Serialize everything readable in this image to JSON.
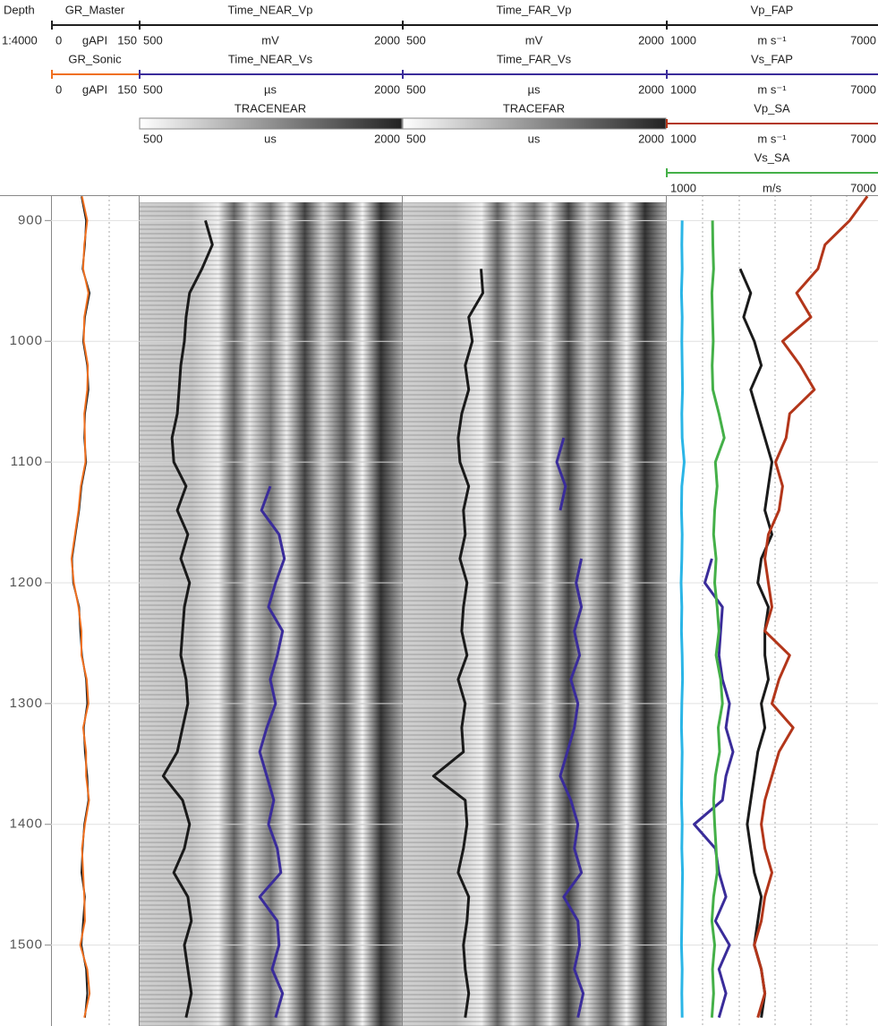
{
  "header": {
    "depth_label": "Depth",
    "scale": "1:4000"
  },
  "depth": {
    "ylim": [
      879,
      1567
    ],
    "yticks": [
      900,
      1000,
      1100,
      1200,
      1300,
      1400,
      1500
    ],
    "samples": [
      880,
      900,
      920,
      940,
      960,
      980,
      1000,
      1020,
      1040,
      1060,
      1080,
      1100,
      1120,
      1140,
      1160,
      1180,
      1200,
      1220,
      1240,
      1260,
      1280,
      1300,
      1320,
      1340,
      1360,
      1380,
      1400,
      1420,
      1440,
      1460,
      1480,
      1500,
      1520,
      1540,
      1560
    ]
  },
  "tracks": [
    {
      "curves": [
        {
          "name": "GR_Master",
          "unit": "gAPI",
          "min": 0,
          "max": 150,
          "color": "#222222",
          "values": [
            52,
            60,
            58,
            54,
            66,
            58,
            55,
            62,
            64,
            58,
            57,
            60,
            52,
            48,
            42,
            36,
            38,
            48,
            50,
            53,
            60,
            62,
            56,
            58,
            62,
            64,
            57,
            54,
            52,
            58,
            55,
            52,
            60,
            62,
            58
          ]
        },
        {
          "name": "GR_Sonic",
          "unit": "gAPI",
          "min": 0,
          "max": 150,
          "color": "#f07020",
          "values": [
            53,
            62,
            57,
            55,
            64,
            57,
            56,
            63,
            62,
            57,
            58,
            59,
            51,
            47,
            41,
            35,
            39,
            47,
            52,
            52,
            61,
            64,
            55,
            60,
            60,
            65,
            58,
            53,
            55,
            57,
            58,
            50,
            62,
            66,
            57
          ]
        }
      ]
    },
    {
      "curves": [
        {
          "name": "Time_NEAR_Vp",
          "unit": "mV",
          "min": 500,
          "max": 2000,
          "color": "#1a1a1a",
          "values": [
            null,
            880,
            920,
            860,
            790,
            770,
            760,
            740,
            730,
            720,
            690,
            700,
            770,
            720,
            780,
            740,
            790,
            760,
            750,
            740,
            770,
            780,
            750,
            720,
            640,
            750,
            790,
            760,
            700,
            780,
            800,
            760,
            780,
            800,
            770
          ]
        },
        {
          "name": "Time_NEAR_Vs",
          "unit": "µs",
          "min": 500,
          "max": 2000,
          "color": "#3a2c9a",
          "values": [
            null,
            null,
            null,
            null,
            null,
            null,
            null,
            null,
            null,
            null,
            null,
            null,
            1250,
            1200,
            1300,
            1330,
            1280,
            1240,
            1320,
            1290,
            1250,
            1280,
            1230,
            1190,
            1230,
            1270,
            1240,
            1290,
            1310,
            1190,
            1290,
            1300,
            1260,
            1320,
            1280
          ]
        },
        {
          "name": "TRACENEAR",
          "unit": "us",
          "min": 500,
          "max": 2000,
          "style": "trace"
        }
      ]
    },
    {
      "curves": [
        {
          "name": "Time_FAR_Vp",
          "unit": "mV",
          "min": 500,
          "max": 2000,
          "color": "#1a1a1a",
          "values": [
            null,
            null,
            null,
            950,
            960,
            880,
            900,
            860,
            880,
            840,
            820,
            830,
            880,
            850,
            860,
            830,
            870,
            850,
            840,
            870,
            820,
            860,
            840,
            850,
            680,
            860,
            870,
            850,
            820,
            880,
            870,
            850,
            860,
            880,
            860
          ]
        },
        {
          "name": "Time_FAR_Vs",
          "unit": "µs",
          "min": 500,
          "max": 2000,
          "color": "#3a2c9a",
          "values": [
            null,
            null,
            null,
            null,
            null,
            null,
            null,
            null,
            null,
            null,
            1420,
            1380,
            1430,
            1400,
            null,
            1520,
            1490,
            1520,
            1480,
            1510,
            1460,
            1500,
            1480,
            1440,
            1400,
            1460,
            1500,
            1480,
            1520,
            1420,
            1500,
            1510,
            1480,
            1530,
            1500
          ]
        },
        {
          "name": "TRACEFAR",
          "unit": "us",
          "min": 500,
          "max": 2000,
          "style": "trace"
        }
      ]
    },
    {
      "curves": [
        {
          "name": "Vp_FAP",
          "unit": "m s⁻¹",
          "min": 1000,
          "max": 7000,
          "color": "#1a1a1a",
          "values": [
            null,
            null,
            null,
            3100,
            3400,
            3200,
            3500,
            3700,
            3400,
            3600,
            3800,
            4000,
            3900,
            3800,
            4000,
            3700,
            3600,
            3900,
            3800,
            3800,
            3900,
            3700,
            3800,
            3600,
            3500,
            3400,
            3300,
            3400,
            3500,
            3700,
            3600,
            3500,
            3700,
            3800,
            3700
          ]
        },
        {
          "name": "Vs_FAP",
          "unit": "m s⁻¹",
          "min": 1000,
          "max": 7000,
          "color": "#3a2c9a",
          "values": [
            null,
            null,
            null,
            null,
            null,
            null,
            null,
            null,
            null,
            null,
            null,
            null,
            null,
            null,
            null,
            2300,
            2100,
            2600,
            2550,
            2500,
            2600,
            2800,
            2700,
            2900,
            2700,
            2600,
            1800,
            2400,
            2500,
            2700,
            2400,
            2800,
            2500,
            2700,
            2500
          ]
        },
        {
          "name": "Vp_SA",
          "unit": "m s⁻¹",
          "min": 1000,
          "max": 7000,
          "color": "#b3361a",
          "values": [
            6700,
            6200,
            5500,
            5300,
            4700,
            5100,
            4300,
            4800,
            5200,
            4500,
            4400,
            4100,
            4300,
            4200,
            3900,
            3800,
            3900,
            4000,
            3800,
            4500,
            4200,
            4000,
            4600,
            4200,
            4000,
            3800,
            3700,
            3800,
            4000,
            3800,
            3700,
            3500,
            3700,
            3800,
            3600
          ]
        },
        {
          "name": "Vs_SA",
          "unit": "m/s",
          "min": 1000,
          "max": 7000,
          "color": "#44b048",
          "values": [
            null,
            2320,
            2330,
            2350,
            2300,
            2320,
            2340,
            2310,
            2330,
            2500,
            2650,
            2400,
            2450,
            2380,
            2350,
            2420,
            2380,
            2450,
            2500,
            2420,
            2550,
            2600,
            2480,
            2520,
            2400,
            2350,
            2380,
            2420,
            2450,
            2350,
            2300,
            2380,
            2320,
            2350,
            2300
          ]
        },
        {
          "color": "#2bb5e6",
          "min": 1000,
          "max": 7000,
          "values": [
            null,
            1460,
            1450,
            1460,
            1440,
            1460,
            1450,
            1460,
            1470,
            1450,
            1460,
            1520,
            1450,
            1440,
            1460,
            1450,
            1430,
            1450,
            1440,
            1460,
            1470,
            1450,
            1440,
            1460,
            1450,
            1440,
            1460,
            1450,
            1470,
            1460,
            1450,
            1440,
            1460,
            1450,
            1460
          ]
        }
      ]
    }
  ]
}
